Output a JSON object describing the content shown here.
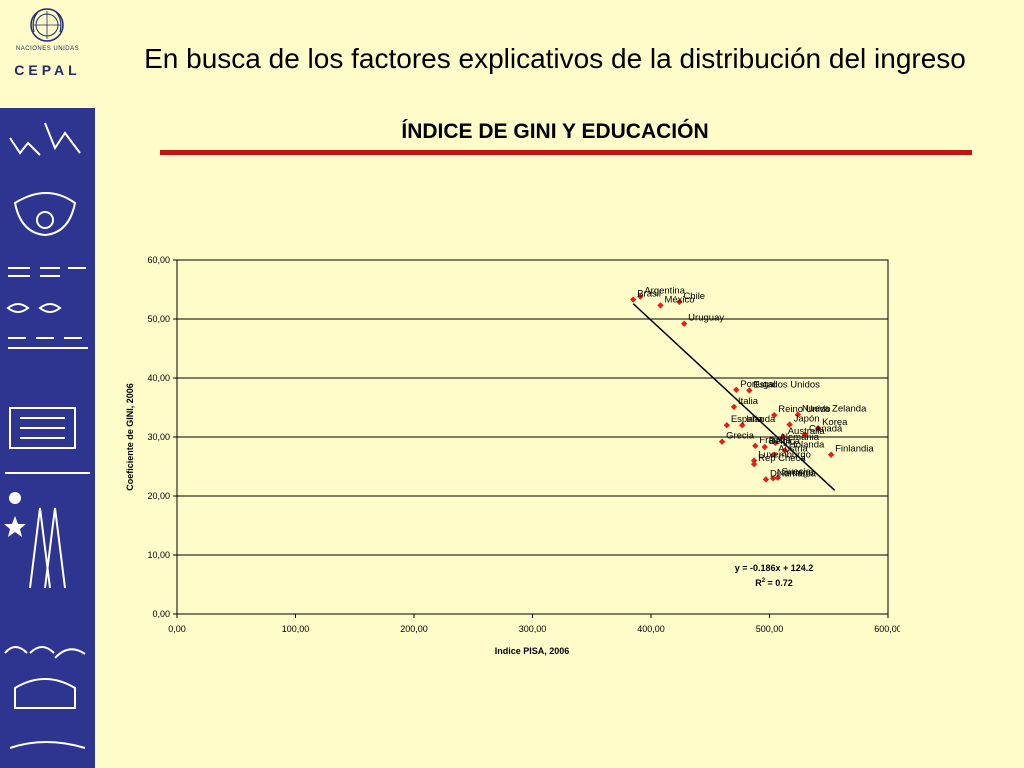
{
  "slide": {
    "title": "En busca de los factores explicativos de la distribución del ingreso",
    "subtitle": "ÍNDICE DE GINI Y EDUCACIÓN"
  },
  "logo": {
    "org_line": "NACIONES UNIDAS",
    "name": "CEPAL"
  },
  "colors": {
    "background": "#fefcc8",
    "sidebar": "#2e3590",
    "rule": "#c41410",
    "points": "#e0201a"
  },
  "chart_data": {
    "type": "scatter",
    "xlabel": "Indice PISA, 2006",
    "ylabel": "Coeficiente de GINI, 2006",
    "xlim": [
      0,
      600
    ],
    "ylim": [
      0,
      60
    ],
    "xticks": [
      "0,00",
      "100,00",
      "200,00",
      "300,00",
      "400,00",
      "500,00",
      "600,00"
    ],
    "yticks": [
      "0,00",
      "10,00",
      "20,00",
      "30,00",
      "40,00",
      "50,00",
      "60,00"
    ],
    "grid": "horizontal",
    "equation": "y = -0.186x + 124.2",
    "r2_label": "R",
    "r2_sup": "2",
    "r2_value": " = 0.72",
    "trendline": {
      "slope": -0.186,
      "intercept": 124.2,
      "x_range": [
        385,
        555
      ]
    },
    "points": [
      {
        "label": "Argentina",
        "x": 391,
        "y": 53.8
      },
      {
        "label": "Brasil",
        "x": 385,
        "y": 53.3
      },
      {
        "label": "Chile",
        "x": 424,
        "y": 52.9
      },
      {
        "label": "México",
        "x": 408,
        "y": 52.3
      },
      {
        "label": "Uruguay",
        "x": 428,
        "y": 49.2
      },
      {
        "label": "Portugal",
        "x": 472,
        "y": 38.0
      },
      {
        "label": "Estados Unidos",
        "x": 483,
        "y": 37.9
      },
      {
        "label": "Italia",
        "x": 470,
        "y": 35.1
      },
      {
        "label": "Reino Unido",
        "x": 504,
        "y": 33.7
      },
      {
        "label": "Nueva Zelanda",
        "x": 524,
        "y": 33.8
      },
      {
        "label": "España",
        "x": 464,
        "y": 32.0
      },
      {
        "label": "Irlanda",
        "x": 477,
        "y": 32.0
      },
      {
        "label": "Japón",
        "x": 517,
        "y": 32.1
      },
      {
        "label": "Korea",
        "x": 541,
        "y": 31.5
      },
      {
        "label": "Australia",
        "x": 512,
        "y": 30.0
      },
      {
        "label": "Canadá",
        "x": 530,
        "y": 30.4
      },
      {
        "label": "Grecia",
        "x": 460,
        "y": 29.2
      },
      {
        "label": "Alemania",
        "x": 505,
        "y": 29.0
      },
      {
        "label": "Francia",
        "x": 488,
        "y": 28.5
      },
      {
        "label": "Bélgica",
        "x": 496,
        "y": 28.3
      },
      {
        "label": "Holanda",
        "x": 513,
        "y": 27.7
      },
      {
        "label": "Austria",
        "x": 504,
        "y": 27.0
      },
      {
        "label": "Finlandia",
        "x": 552,
        "y": 27.0
      },
      {
        "label": "Luxemburgo",
        "x": 487,
        "y": 26.0
      },
      {
        "label": "Rep Checa",
        "x": 487,
        "y": 25.4
      },
      {
        "label": "Noruega",
        "x": 503,
        "y": 23.0
      },
      {
        "label": "Suecia",
        "x": 507,
        "y": 23.1
      },
      {
        "label": "Dinamarca",
        "x": 497,
        "y": 22.8
      }
    ]
  }
}
